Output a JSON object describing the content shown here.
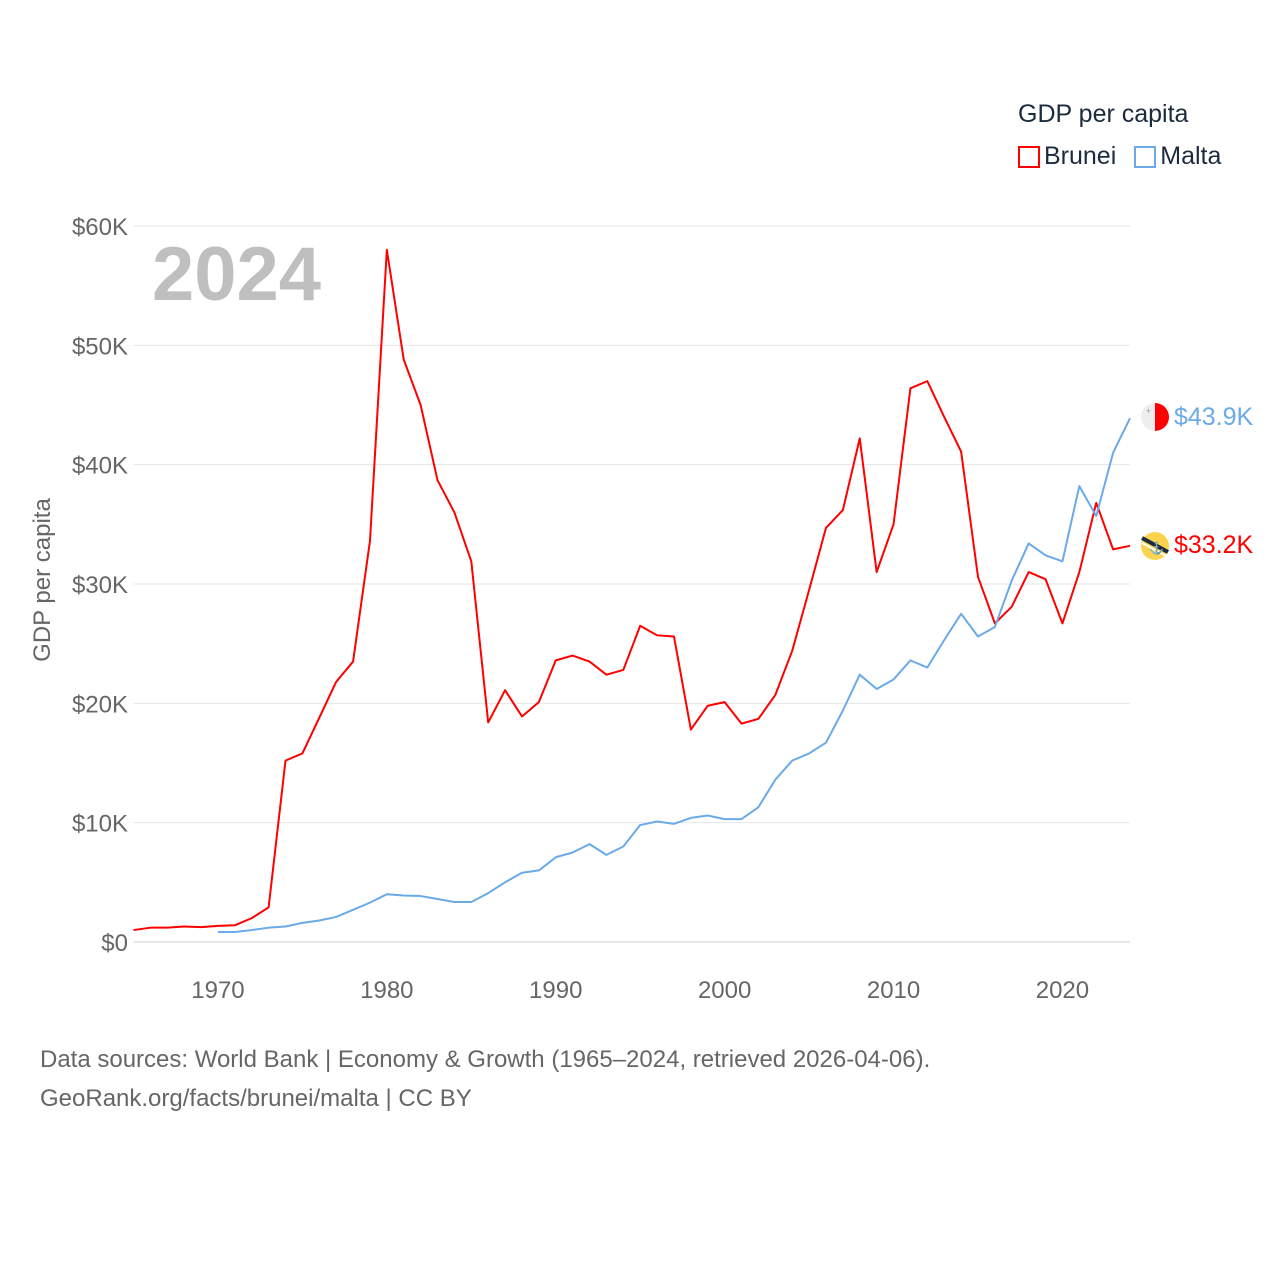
{
  "legend": {
    "title": "GDP per capita",
    "items": [
      {
        "name": "Brunei",
        "color": "#ff0000"
      },
      {
        "name": "Malta",
        "color": "#6aaae8"
      }
    ]
  },
  "year_label": "2024",
  "end_labels": {
    "brunei": "$33.2K",
    "malta": "$43.9K"
  },
  "footer": {
    "line1": "Data sources: World Bank | Economy & Growth (1965–2024, retrieved 2026-04-06).",
    "line2": "GeoRank.org/facts/brunei/malta | CC BY"
  },
  "chart_data": {
    "type": "line",
    "title": "",
    "xlabel": "",
    "ylabel": "GDP per capita",
    "xlim": [
      1965,
      2024
    ],
    "ylim": [
      0,
      60000
    ],
    "x_ticks": [
      1970,
      1980,
      1990,
      2000,
      2010,
      2020
    ],
    "x_tick_labels": [
      "1970",
      "1980",
      "1990",
      "2000",
      "2010",
      "2020"
    ],
    "y_ticks": [
      0,
      10000,
      20000,
      30000,
      40000,
      50000,
      60000
    ],
    "y_tick_labels": [
      "$0",
      "$10K",
      "$20K",
      "$30K",
      "$40K",
      "$50K",
      "$60K"
    ],
    "grid": true,
    "legend_position": "top-right",
    "series": [
      {
        "name": "Brunei",
        "color": "#ff0000",
        "x_start": 1965,
        "values": [
          1.0,
          1.2,
          1.2,
          1.3,
          1.25,
          1.35,
          1.4,
          2.0,
          2.9,
          15.2,
          15.8,
          18.8,
          21.8,
          23.5,
          33.6,
          58.0,
          48.8,
          45.0,
          38.7,
          36.0,
          31.9,
          18.4,
          21.1,
          18.9,
          20.1,
          23.6,
          24.0,
          23.5,
          22.4,
          22.8,
          26.5,
          25.7,
          25.6,
          17.8,
          19.8,
          20.1,
          18.3,
          18.7,
          20.7,
          24.4,
          29.5,
          34.7,
          36.2,
          42.2,
          31.0,
          35.0,
          46.4,
          47.0,
          44.0,
          41.1,
          30.6,
          26.7,
          28.1,
          31.0,
          30.4,
          26.7,
          31.0,
          36.8,
          32.9,
          33.2
        ],
        "unit": "thousand USD"
      },
      {
        "name": "Malta",
        "color": "#6aaae8",
        "x_start": 1970,
        "values": [
          0.84,
          0.84,
          1.0,
          1.2,
          1.3,
          1.6,
          1.8,
          2.1,
          2.7,
          3.3,
          4.0,
          3.9,
          3.85,
          3.6,
          3.35,
          3.35,
          4.1,
          5.0,
          5.8,
          6.0,
          7.1,
          7.5,
          8.2,
          7.3,
          8.0,
          9.8,
          10.1,
          9.9,
          10.4,
          10.6,
          10.3,
          10.3,
          11.3,
          13.6,
          15.2,
          15.8,
          16.7,
          19.4,
          22.4,
          21.2,
          22.0,
          23.6,
          23.0,
          25.3,
          27.5,
          25.6,
          26.4,
          30.3,
          33.4,
          32.4,
          31.9,
          38.2,
          35.7,
          41.0,
          43.9
        ],
        "unit": "thousand USD"
      }
    ]
  }
}
